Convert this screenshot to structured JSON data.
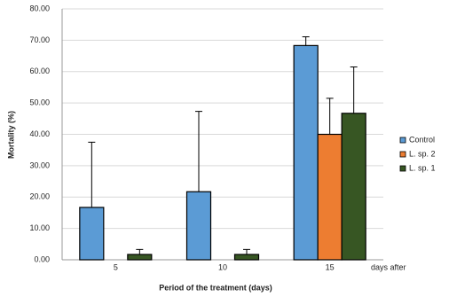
{
  "chart_data": {
    "type": "bar",
    "x_label": "Period of the treatment (days)",
    "y_label": "Mortality (%)",
    "annotation": "days after",
    "categories": [
      "5",
      "10",
      "15"
    ],
    "series": [
      {
        "name": "Control",
        "color": "#5b9bd5",
        "values": [
          16.7,
          21.7,
          68.3
        ],
        "errors": [
          20.8,
          25.6,
          2.8
        ]
      },
      {
        "name": "L. sp. 2",
        "color": "#ed7d31",
        "values": [
          0,
          0,
          40.0
        ],
        "errors": [
          null,
          null,
          11.5
        ]
      },
      {
        "name": "L. sp. 1",
        "color": "#375623",
        "values": [
          1.7,
          1.7,
          46.7
        ],
        "errors": [
          1.6,
          1.6,
          14.8
        ]
      }
    ],
    "ylim": [
      0,
      80
    ],
    "yticks": [
      {
        "value": 0,
        "label": "0.00"
      },
      {
        "value": 10,
        "label": "10.00"
      },
      {
        "value": 20,
        "label": "20.00"
      },
      {
        "value": 30,
        "label": "30.00"
      },
      {
        "value": 40,
        "label": "40.00"
      },
      {
        "value": 50,
        "label": "50.00"
      },
      {
        "value": 60,
        "label": "60.00"
      },
      {
        "value": 70,
        "label": "70.00"
      },
      {
        "value": 80,
        "label": "80.00"
      }
    ],
    "grid": true,
    "legend": "right"
  }
}
